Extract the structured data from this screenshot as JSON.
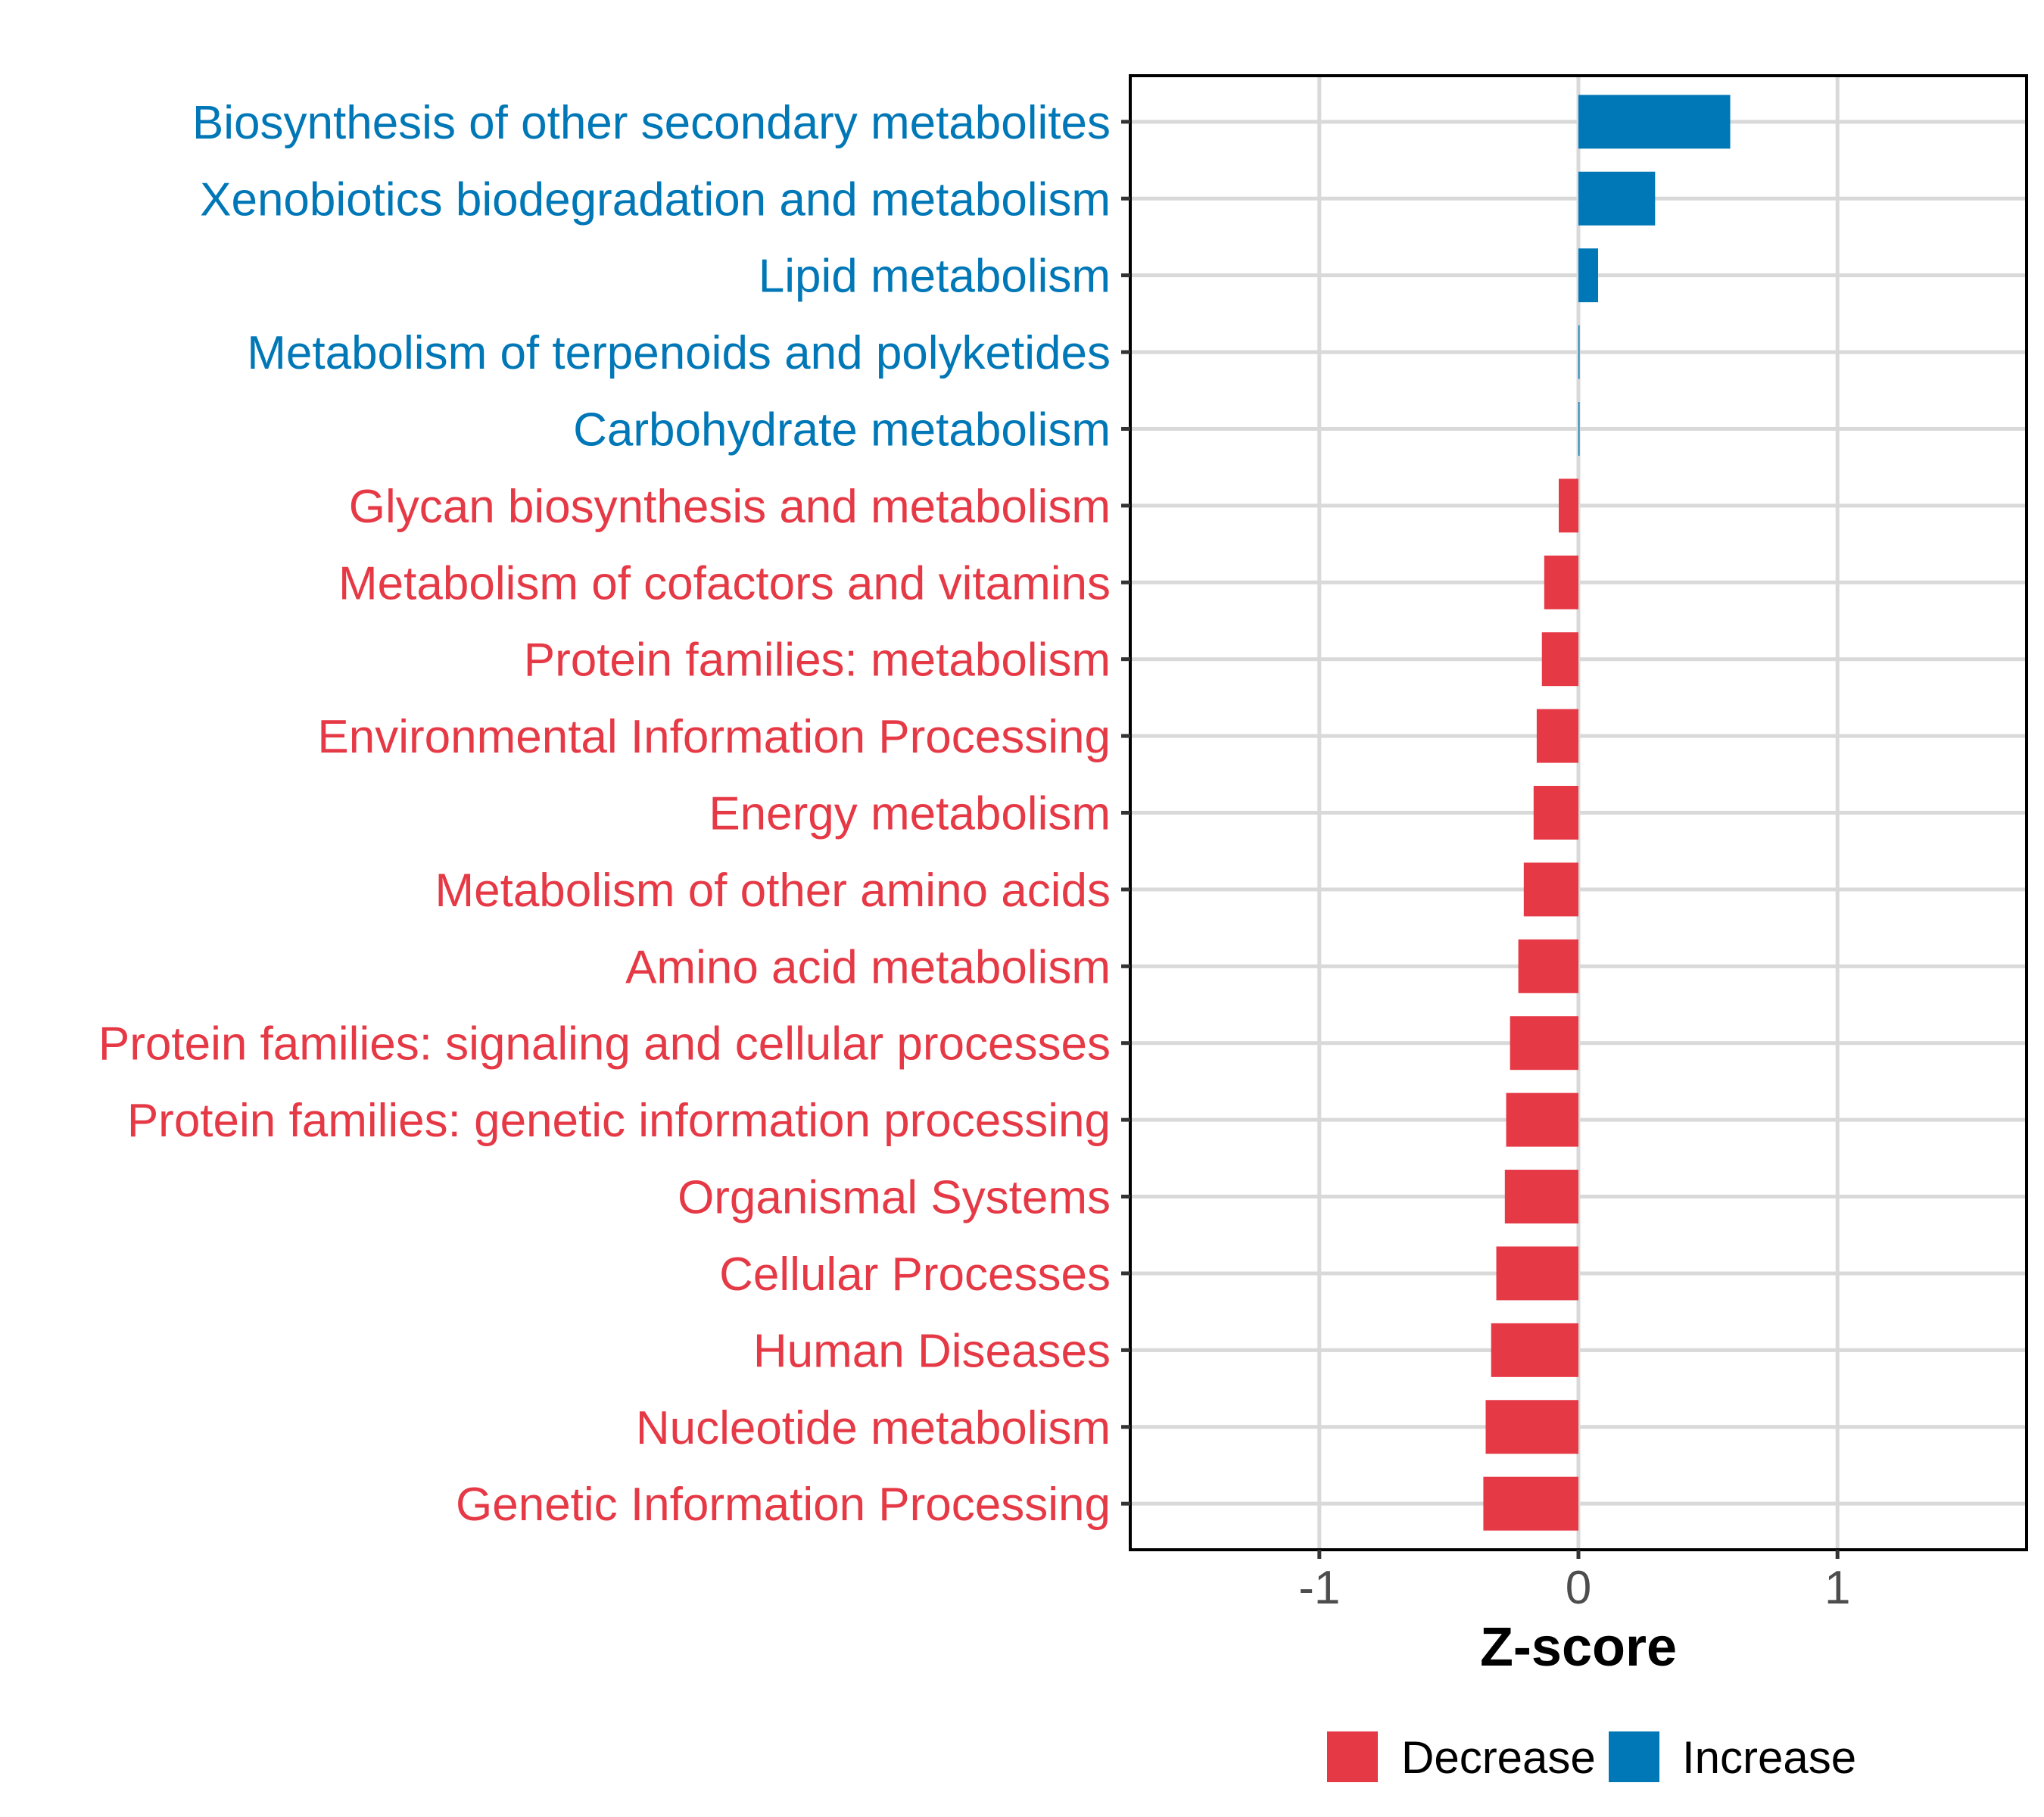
{
  "chart_data": {
    "type": "bar",
    "orientation": "horizontal",
    "title": "",
    "xlabel": "Z-score",
    "ylabel": "",
    "xlim": [
      -1.73,
      1.73
    ],
    "x_ticks": [
      -1,
      0,
      1
    ],
    "x_tick_labels": [
      "-1",
      "0",
      "1"
    ],
    "grid": true,
    "legend_position": "bottom",
    "colors": {
      "Decrease": "#E63946",
      "Increase": "#0077B6"
    },
    "legend": [
      {
        "label": "Decrease",
        "color": "#E63946"
      },
      {
        "label": "Increase",
        "color": "#0077B6"
      }
    ],
    "categories": [
      "Biosynthesis of other secondary metabolites",
      "Xenobiotics biodegradation and metabolism",
      "Lipid metabolism",
      "Metabolism of terpenoids and polyketides",
      "Carbohydrate metabolism",
      "Glycan biosynthesis and metabolism",
      "Metabolism of cofactors and vitamins",
      "Protein families: metabolism",
      "Environmental Information Processing",
      "Energy metabolism",
      "Metabolism of other amino acids",
      "Amino acid metabolism",
      "Protein families: signaling and cellular processes",
      "Protein families: genetic information processing",
      "Organismal Systems",
      "Cellular Processes",
      "Human Diseases",
      "Nucleotide metabolism",
      "Genetic Information Processing"
    ],
    "values": [
      0.586,
      0.296,
      0.076,
      0.003,
      0.002,
      -0.076,
      -0.132,
      -0.141,
      -0.161,
      -0.173,
      -0.211,
      -0.232,
      -0.264,
      -0.279,
      -0.284,
      -0.317,
      -0.337,
      -0.358,
      -0.367
    ],
    "groups": [
      "Increase",
      "Increase",
      "Increase",
      "Increase",
      "Increase",
      "Decrease",
      "Decrease",
      "Decrease",
      "Decrease",
      "Decrease",
      "Decrease",
      "Decrease",
      "Decrease",
      "Decrease",
      "Decrease",
      "Decrease",
      "Decrease",
      "Decrease",
      "Decrease"
    ]
  }
}
